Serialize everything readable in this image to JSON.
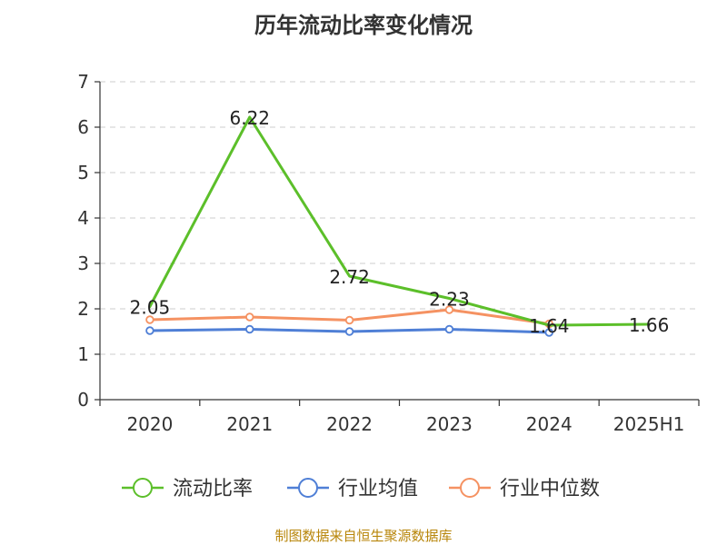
{
  "chart_data": {
    "type": "line",
    "title": "历年流动比率变化情况",
    "categories": [
      "2020",
      "2021",
      "2022",
      "2023",
      "2024",
      "2025H1"
    ],
    "ylim": [
      0,
      7
    ],
    "yticks": [
      0,
      1,
      2,
      3,
      4,
      5,
      6,
      7
    ],
    "grid": "horizontal-dashed",
    "legend_position": "bottom",
    "series": [
      {
        "name": "流动比率",
        "color": "#5cbf2a",
        "values": [
          2.05,
          6.22,
          2.72,
          2.23,
          1.64,
          1.66
        ],
        "labels": [
          "2.05",
          "6.22",
          "2.72",
          "2.23",
          "1.64",
          "1.66"
        ],
        "markers": false
      },
      {
        "name": "行业均值",
        "color": "#4f7fd6",
        "values": [
          1.52,
          1.55,
          1.5,
          1.55,
          1.48,
          null
        ],
        "markers": true
      },
      {
        "name": "行业中位数",
        "color": "#f59262",
        "values": [
          1.76,
          1.82,
          1.75,
          1.98,
          1.67,
          null
        ],
        "markers": true
      }
    ]
  },
  "source": "制图数据来自恒生聚源数据库"
}
